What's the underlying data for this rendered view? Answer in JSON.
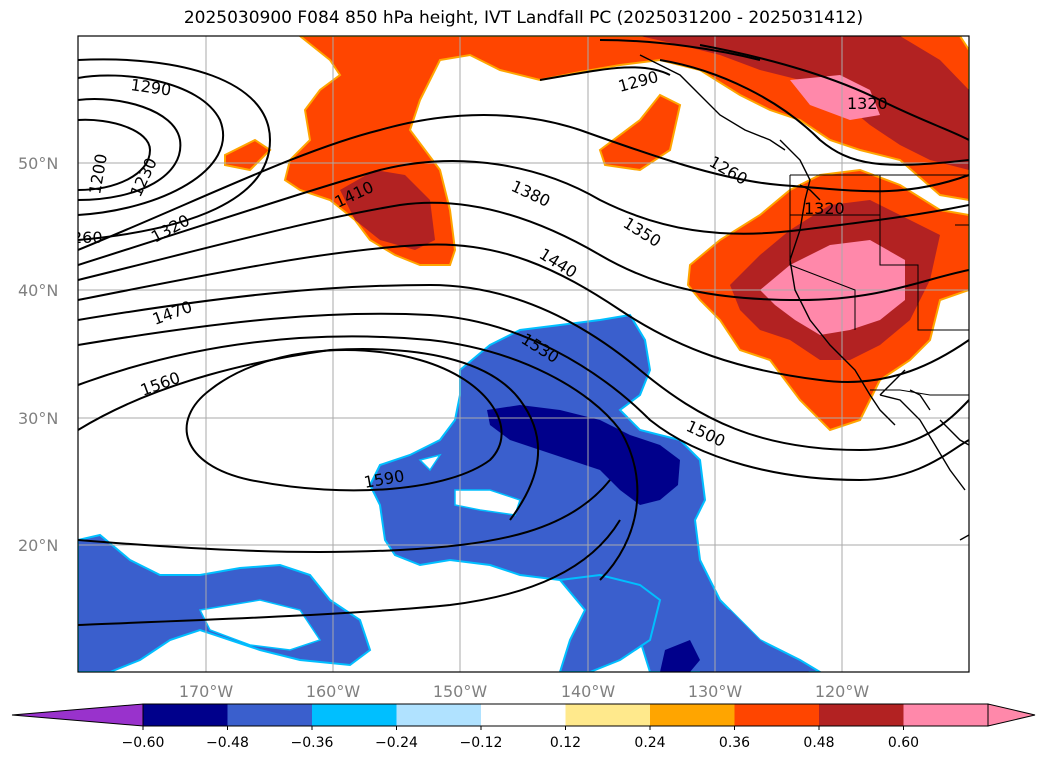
{
  "title": "2025030900 F084 850 hPa height, IVT Landfall PC (2025031200 - 2025031412)",
  "latitude_labels": [
    "50°N",
    "40°N",
    "30°N",
    "20°N"
  ],
  "longitude_labels": [
    "170°W",
    "160°W",
    "150°W",
    "140°W",
    "130°W",
    "120°W"
  ],
  "contour_labels": [
    "1290",
    "1200",
    "1230",
    "260",
    "1320",
    "1410",
    "1470",
    "1560",
    "1590",
    "1530",
    "1440",
    "1380",
    "1350",
    "1500",
    "1260",
    "1320",
    "1320",
    "1290"
  ],
  "colorbar": {
    "ticks": [
      "−0.60",
      "−0.48",
      "−0.36",
      "−0.24",
      "−0.12",
      "0.12",
      "0.24",
      "0.36",
      "0.48",
      "0.60"
    ],
    "colors": [
      "#9932cc",
      "#00008b",
      "#3a5fcd",
      "#00bfff",
      "#b0e2ff",
      "#ffffff",
      "#ffe98c",
      "#ffa500",
      "#ff4500",
      "#b22222",
      "#ff88aa",
      "#ff88aa"
    ]
  },
  "colors": {
    "ocean": "#ffffff",
    "positive_outer": "#ff4500",
    "positive_mid": "#b22222",
    "positive_inner": "#ff88aa",
    "negative_outer": "#3a5fcd",
    "negative_inner": "#00008b",
    "negative_edge": "#00bfff",
    "positive_edge": "#ffa500"
  }
}
